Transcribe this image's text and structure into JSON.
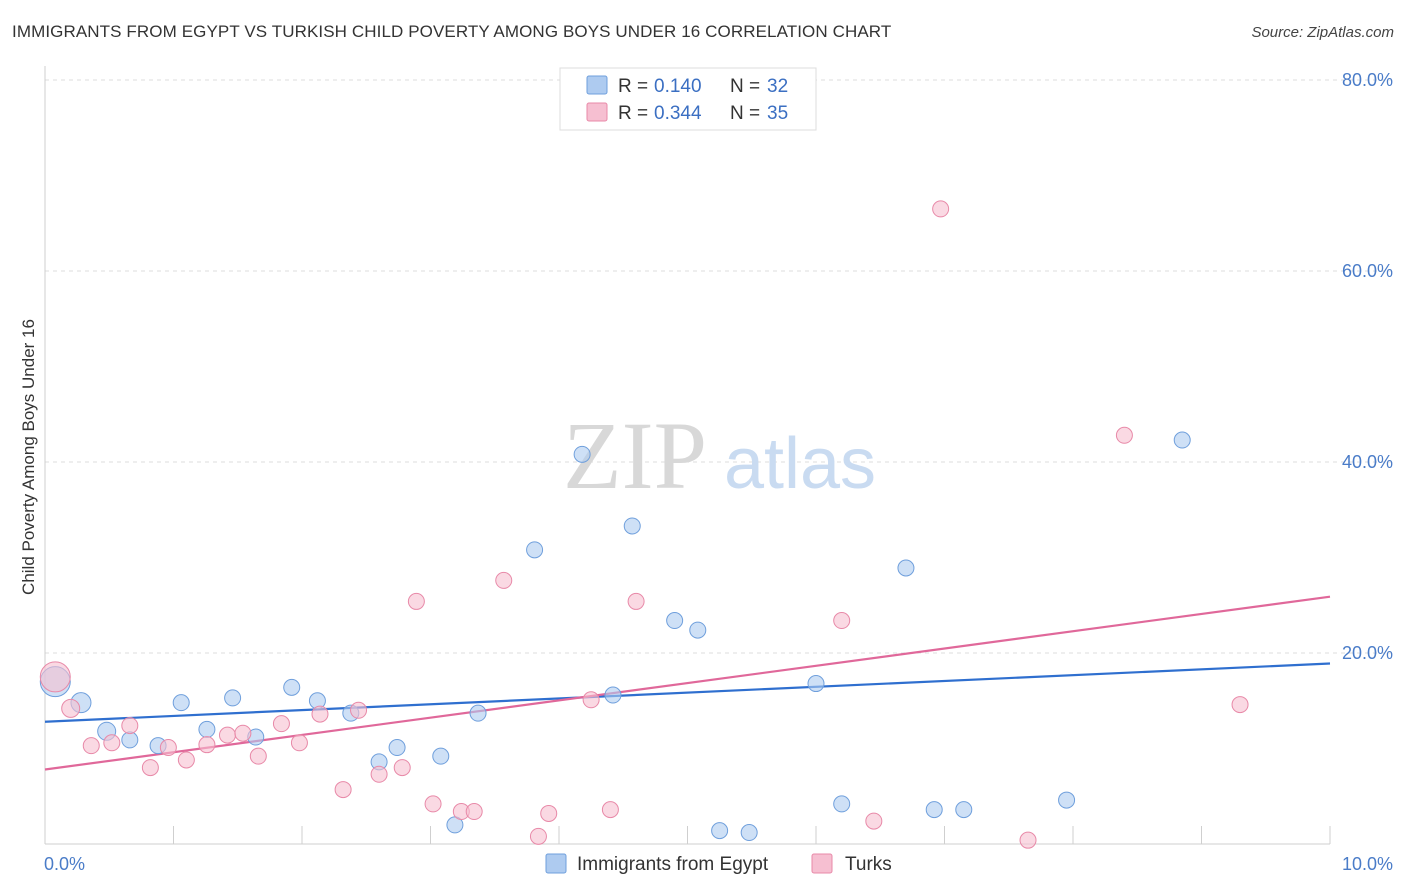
{
  "chart_data": {
    "type": "scatter",
    "title": "IMMIGRANTS FROM EGYPT VS TURKISH CHILD POVERTY AMONG BOYS UNDER 16 CORRELATION CHART",
    "source": "Source: ZipAtlas.com",
    "watermark": {
      "zip": "ZIP",
      "atlas": "atlas"
    },
    "xlabel": "",
    "ylabel": "Child Poverty Among Boys Under 16",
    "xlim": [
      0,
      10
    ],
    "ylim": [
      0,
      80
    ],
    "x_tick_labels": {
      "min": "0.0%",
      "max": "10.0%"
    },
    "y_ticks": [
      {
        "value": 20,
        "label": "20.0%"
      },
      {
        "value": 40,
        "label": "40.0%"
      },
      {
        "value": 60,
        "label": "60.0%"
      },
      {
        "value": 80,
        "label": "80.0%"
      }
    ],
    "grid": true,
    "legend_position": "top-center",
    "series": [
      {
        "name": "Immigrants from Egypt",
        "color": "#aecbf0",
        "edge_color": "#6f9fdc",
        "line_color": "#2f6fcf",
        "R": "0.140",
        "N": "32",
        "trend": [
          [
            0,
            12.8
          ],
          [
            10,
            18.9
          ]
        ],
        "points": [
          [
            0.08,
            17.0,
            15
          ],
          [
            0.28,
            14.8,
            10
          ],
          [
            0.48,
            11.8,
            9
          ],
          [
            0.66,
            10.9,
            8
          ],
          [
            0.88,
            10.3,
            8
          ],
          [
            1.06,
            14.8,
            8
          ],
          [
            1.26,
            12.0,
            8
          ],
          [
            1.46,
            15.3,
            8
          ],
          [
            1.64,
            11.2,
            8
          ],
          [
            1.92,
            16.4,
            8
          ],
          [
            2.12,
            15.0,
            8
          ],
          [
            2.38,
            13.7,
            8
          ],
          [
            2.6,
            8.6,
            8
          ],
          [
            2.74,
            10.1,
            8
          ],
          [
            3.08,
            9.2,
            8
          ],
          [
            3.19,
            2.0,
            8
          ],
          [
            3.37,
            13.7,
            8
          ],
          [
            3.81,
            30.8,
            8
          ],
          [
            4.18,
            40.8,
            8
          ],
          [
            4.42,
            15.6,
            8
          ],
          [
            4.57,
            33.3,
            8
          ],
          [
            4.9,
            23.4,
            8
          ],
          [
            5.08,
            22.4,
            8
          ],
          [
            5.25,
            1.4,
            8
          ],
          [
            5.48,
            1.2,
            8
          ],
          [
            6.0,
            16.8,
            8
          ],
          [
            6.2,
            4.2,
            8
          ],
          [
            6.7,
            28.9,
            8
          ],
          [
            6.92,
            3.6,
            8
          ],
          [
            7.15,
            3.6,
            8
          ],
          [
            7.95,
            4.6,
            8
          ],
          [
            8.85,
            42.3,
            8
          ]
        ]
      },
      {
        "name": "Turks",
        "color": "#f6bfd1",
        "edge_color": "#e889a8",
        "line_color": "#e0689a",
        "R": "0.344",
        "N": "35",
        "trend": [
          [
            0,
            7.8
          ],
          [
            10,
            25.9
          ]
        ],
        "points": [
          [
            0.08,
            17.5,
            15
          ],
          [
            0.2,
            14.2,
            9
          ],
          [
            0.36,
            10.3,
            8
          ],
          [
            0.52,
            10.6,
            8
          ],
          [
            0.66,
            12.4,
            8
          ],
          [
            0.82,
            8.0,
            8
          ],
          [
            0.96,
            10.1,
            8
          ],
          [
            1.1,
            8.8,
            8
          ],
          [
            1.26,
            10.4,
            8
          ],
          [
            1.42,
            11.4,
            8
          ],
          [
            1.54,
            11.6,
            8
          ],
          [
            1.66,
            9.2,
            8
          ],
          [
            1.84,
            12.6,
            8
          ],
          [
            1.98,
            10.6,
            8
          ],
          [
            2.14,
            13.6,
            8
          ],
          [
            2.32,
            5.7,
            8
          ],
          [
            2.44,
            14.0,
            8
          ],
          [
            2.6,
            7.3,
            8
          ],
          [
            2.78,
            8.0,
            8
          ],
          [
            2.89,
            25.4,
            8
          ],
          [
            3.02,
            4.2,
            8
          ],
          [
            3.24,
            3.4,
            8
          ],
          [
            3.34,
            3.4,
            8
          ],
          [
            3.57,
            27.6,
            8
          ],
          [
            3.84,
            0.8,
            8
          ],
          [
            3.92,
            3.2,
            8
          ],
          [
            4.25,
            15.1,
            8
          ],
          [
            4.4,
            3.6,
            8
          ],
          [
            4.6,
            25.4,
            8
          ],
          [
            6.2,
            23.4,
            8
          ],
          [
            6.45,
            2.4,
            8
          ],
          [
            6.97,
            66.5,
            8
          ],
          [
            7.65,
            0.4,
            8
          ],
          [
            8.4,
            42.8,
            8
          ],
          [
            9.3,
            14.6,
            8
          ]
        ]
      }
    ]
  }
}
